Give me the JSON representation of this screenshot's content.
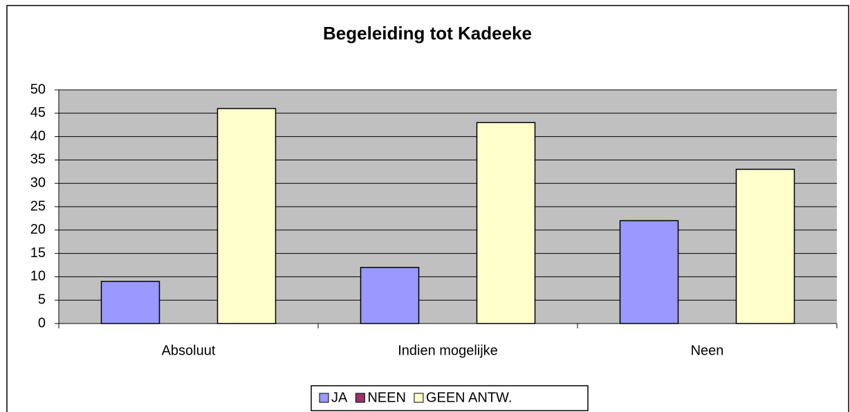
{
  "chart_data": {
    "type": "bar",
    "title": "Begeleiding tot Kadeeke",
    "categories": [
      "Absoluut",
      "Indien mogelijke",
      "Neen"
    ],
    "series": [
      {
        "name": "JA",
        "color": "#9999ff",
        "values": [
          9,
          12,
          22
        ]
      },
      {
        "name": "NEEN",
        "color": "#993366",
        "values": [
          0,
          0,
          0
        ]
      },
      {
        "name": "GEEN ANTW.",
        "color": "#ffffcc",
        "values": [
          46,
          43,
          33
        ]
      }
    ],
    "ylim": [
      0,
      50
    ],
    "yticks": [
      0,
      5,
      10,
      15,
      20,
      25,
      30,
      35,
      40,
      45,
      50
    ],
    "grid": true,
    "legend": "bottom"
  }
}
